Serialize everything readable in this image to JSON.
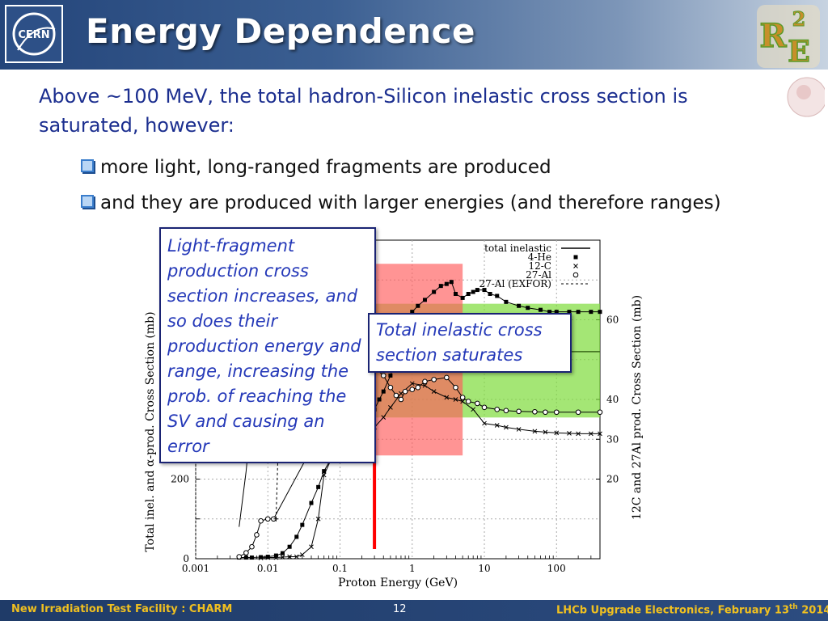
{
  "slide": {
    "title": "Energy Dependence",
    "intro": "Above ~100 MeV, the total hadron-Silicon inelastic cross section is saturated, however:",
    "bullets": [
      "more light, long-ranged fragments are produced",
      "and they are produced with larger energies (and therefore ranges)"
    ],
    "callout_left": "Light-fragment production cross section increases, and so does their production energy and range, increasing the prob. of reaching the SV and causing an error",
    "callout_right": "Total inelastic cross section saturates",
    "footer_left": "New Irradiation Test Facility : CHARM",
    "page_number": "12",
    "footer_right_prefix": "LHCb Upgrade Electronics, February 13",
    "footer_right_sup": "th",
    "footer_right_suffix": " 2014",
    "logo_cern_text": "CERN",
    "logo_r2e": [
      "R",
      "2",
      "E"
    ]
  },
  "chart_data": {
    "type": "line",
    "xlabel": "Proton Energy (GeV)",
    "ylabel": "Total inel. and α-prod. Cross Section (mb)",
    "ylabel_right": "12C and 27Al prod. Cross Section (mb)",
    "x_scale": "log",
    "xlim": [
      0.001,
      400
    ],
    "ylim": [
      0,
      800
    ],
    "ylim_right": [
      0,
      80
    ],
    "x_ticks": [
      "0.001",
      "0.01",
      "0.1",
      "1",
      "10",
      "100"
    ],
    "y_ticks": [
      "0",
      "200"
    ],
    "y_right_ticks": [
      "20",
      "30",
      "40",
      "60"
    ],
    "grid": true,
    "legend_position": "top-right",
    "series": [
      {
        "name": "total inelastic",
        "axis": "left",
        "marker": "line",
        "x": [
          0.004,
          0.005,
          0.006,
          0.007,
          0.008
        ],
        "y": [
          80,
          220,
          380,
          550,
          720
        ]
      },
      {
        "name": "4-He",
        "axis": "left",
        "marker": "square",
        "x": [
          0.004,
          0.005,
          0.006,
          0.008,
          0.01,
          0.013,
          0.016,
          0.02,
          0.025,
          0.03,
          0.04,
          0.05,
          0.06,
          0.08,
          0.1,
          0.12,
          0.15,
          0.2,
          0.25,
          0.3,
          0.35,
          0.4,
          0.5,
          0.6,
          0.7,
          0.8,
          1,
          1.2,
          1.5,
          2,
          2.5,
          3,
          3.5,
          4,
          5,
          6,
          7,
          8,
          10,
          12,
          15,
          20,
          30,
          40,
          60,
          80,
          100,
          150,
          200,
          300,
          400
        ],
        "y": [
          3,
          3,
          3,
          4,
          5,
          8,
          14,
          30,
          55,
          85,
          140,
          180,
          220,
          260,
          285,
          300,
          320,
          345,
          360,
          375,
          400,
          420,
          460,
          505,
          545,
          585,
          620,
          635,
          650,
          670,
          685,
          690,
          695,
          665,
          655,
          665,
          670,
          675,
          675,
          665,
          660,
          645,
          635,
          630,
          625,
          620,
          620,
          620,
          620,
          620,
          620
        ]
      },
      {
        "name": "12-C",
        "axis": "left",
        "marker": "cross",
        "x": [
          0.008,
          0.01,
          0.013,
          0.016,
          0.02,
          0.025,
          0.03,
          0.04,
          0.05,
          0.06,
          0.08,
          0.1,
          0.12,
          0.15,
          0.2,
          0.3,
          0.4,
          0.5,
          0.7,
          1,
          1.5,
          2,
          3,
          4,
          5,
          7,
          10,
          15,
          20,
          30,
          50,
          70,
          100,
          150,
          200,
          300,
          400
        ],
        "y": [
          2,
          3,
          3,
          4,
          5,
          5,
          10,
          30,
          100,
          210,
          260,
          290,
          300,
          310,
          320,
          330,
          355,
          380,
          415,
          440,
          435,
          420,
          405,
          400,
          395,
          375,
          340,
          335,
          330,
          325,
          320,
          318,
          316,
          315,
          314,
          314,
          314
        ]
      },
      {
        "name": "27-Al",
        "axis": "left",
        "marker": "circle",
        "x": [
          0.004,
          0.005,
          0.006,
          0.007,
          0.008,
          0.01,
          0.012,
          0.2,
          0.3,
          0.4,
          0.5,
          0.6,
          0.7,
          0.8,
          1,
          1.2,
          1.5,
          2,
          3,
          4,
          5,
          6,
          8,
          10,
          15,
          20,
          30,
          50,
          70,
          100,
          200,
          400
        ],
        "y": [
          5,
          15,
          30,
          60,
          95,
          100,
          100,
          510,
          480,
          460,
          430,
          410,
          400,
          420,
          425,
          430,
          445,
          450,
          455,
          430,
          405,
          395,
          390,
          380,
          375,
          372,
          370,
          369,
          368,
          368,
          368,
          368
        ]
      },
      {
        "name": "27-Al (EXFOR)",
        "axis": "left",
        "marker": "star-dashed",
        "x": [
          0.013,
          0.014,
          0.016,
          0.018,
          0.02
        ],
        "y": [
          100,
          300,
          520,
          680,
          760
        ]
      }
    ],
    "annotations": [
      {
        "type": "vertical-line",
        "color": "#ff0000",
        "x": 0.3
      },
      {
        "type": "band",
        "color": "#ff5a5a",
        "x": [
          0.3,
          5
        ]
      },
      {
        "type": "band",
        "color": "#7edc3a",
        "x": [
          0.3,
          400
        ]
      }
    ]
  },
  "colors": {
    "accent_blue": "#1b2e8f",
    "highlight_red": "#ff0000",
    "highlight_green": "#7edc3a",
    "footer_text": "#f0c020"
  }
}
